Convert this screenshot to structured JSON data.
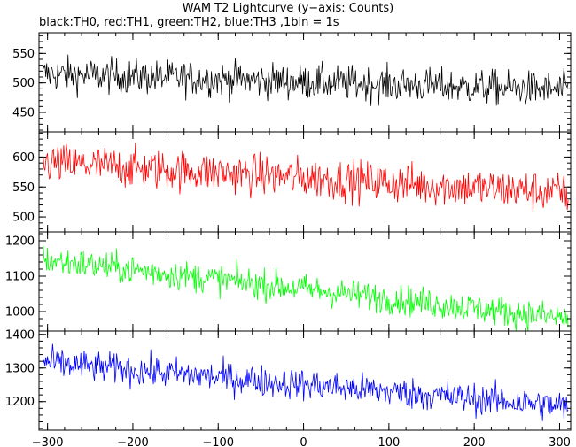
{
  "chart_data": {
    "type": "line",
    "title": "WAM T2 Lightcurve (y−axis: Counts)",
    "subtitle": "black:TH0, red:TH1, green:TH2, blue:TH3 ,1bin = 1s",
    "xlim": [
      -310,
      313
    ],
    "xticks": [
      -300,
      -200,
      -100,
      0,
      100,
      200,
      300
    ],
    "xtick_labels": [
      "−300",
      "−200",
      "−100",
      "0",
      "100",
      "200",
      "300"
    ],
    "grid": false,
    "panels": [
      {
        "name": "TH0",
        "color": "#000000",
        "ylim": [
          417,
          585
        ],
        "yticks": [
          450,
          500,
          550
        ],
        "trend": {
          "x": [
            -300,
            310
          ],
          "y": [
            515,
            488
          ]
        },
        "noise_sigma": 21,
        "series": [
          {
            "x": [
              -300,
              -250,
              -200,
              -150,
              -100,
              -50,
              0,
              50,
              100,
              150,
              200,
              250,
              300
            ],
            "y": [
              515,
              512,
              509,
              507,
              505,
              504,
              502,
              500,
              498,
              496,
              494,
              492,
              489
            ]
          }
        ]
      },
      {
        "name": "TH1",
        "color": "#ff0000",
        "ylim": [
          475,
          642
        ],
        "yticks": [
          500,
          550,
          600
        ],
        "trend": {
          "x": [
            -300,
            310
          ],
          "y": [
            590,
            540
          ]
        },
        "noise_sigma": 24,
        "series": [
          {
            "x": [
              -300,
              -250,
              -200,
              -150,
              -100,
              -50,
              0,
              50,
              100,
              150,
              200,
              250,
              300
            ],
            "y": [
              590,
              586,
              581,
              577,
              573,
              569,
              565,
              561,
              556,
              552,
              548,
              544,
              541
            ]
          }
        ]
      },
      {
        "name": "TH2",
        "color": "#00ff00",
        "ylim": [
          945,
          1225
        ],
        "yticks": [
          1000,
          1100,
          1200
        ],
        "trend": {
          "x": [
            -300,
            310
          ],
          "y": [
            1145,
            980
          ]
        },
        "noise_sigma": 30,
        "series": [
          {
            "x": [
              -300,
              -250,
              -200,
              -150,
              -100,
              -50,
              0,
              50,
              100,
              150,
              200,
              250,
              300
            ],
            "y": [
              1145,
              1131,
              1118,
              1104,
              1091,
              1077,
              1064,
              1050,
              1037,
              1023,
              1010,
              996,
              983
            ]
          }
        ]
      },
      {
        "name": "TH3",
        "color": "#0000ff",
        "ylim": [
          1115,
          1410
        ],
        "yticks": [
          1200,
          1300,
          1400
        ],
        "trend": {
          "x": [
            -300,
            310
          ],
          "y": [
            1315,
            1185
          ]
        },
        "noise_sigma": 33,
        "series": [
          {
            "x": [
              -300,
              -250,
              -200,
              -150,
              -100,
              -50,
              0,
              50,
              100,
              150,
              200,
              250,
              300
            ],
            "y": [
              1315,
              1304,
              1294,
              1283,
              1272,
              1262,
              1251,
              1240,
              1230,
              1219,
              1209,
              1198,
              1187
            ]
          }
        ]
      }
    ]
  }
}
